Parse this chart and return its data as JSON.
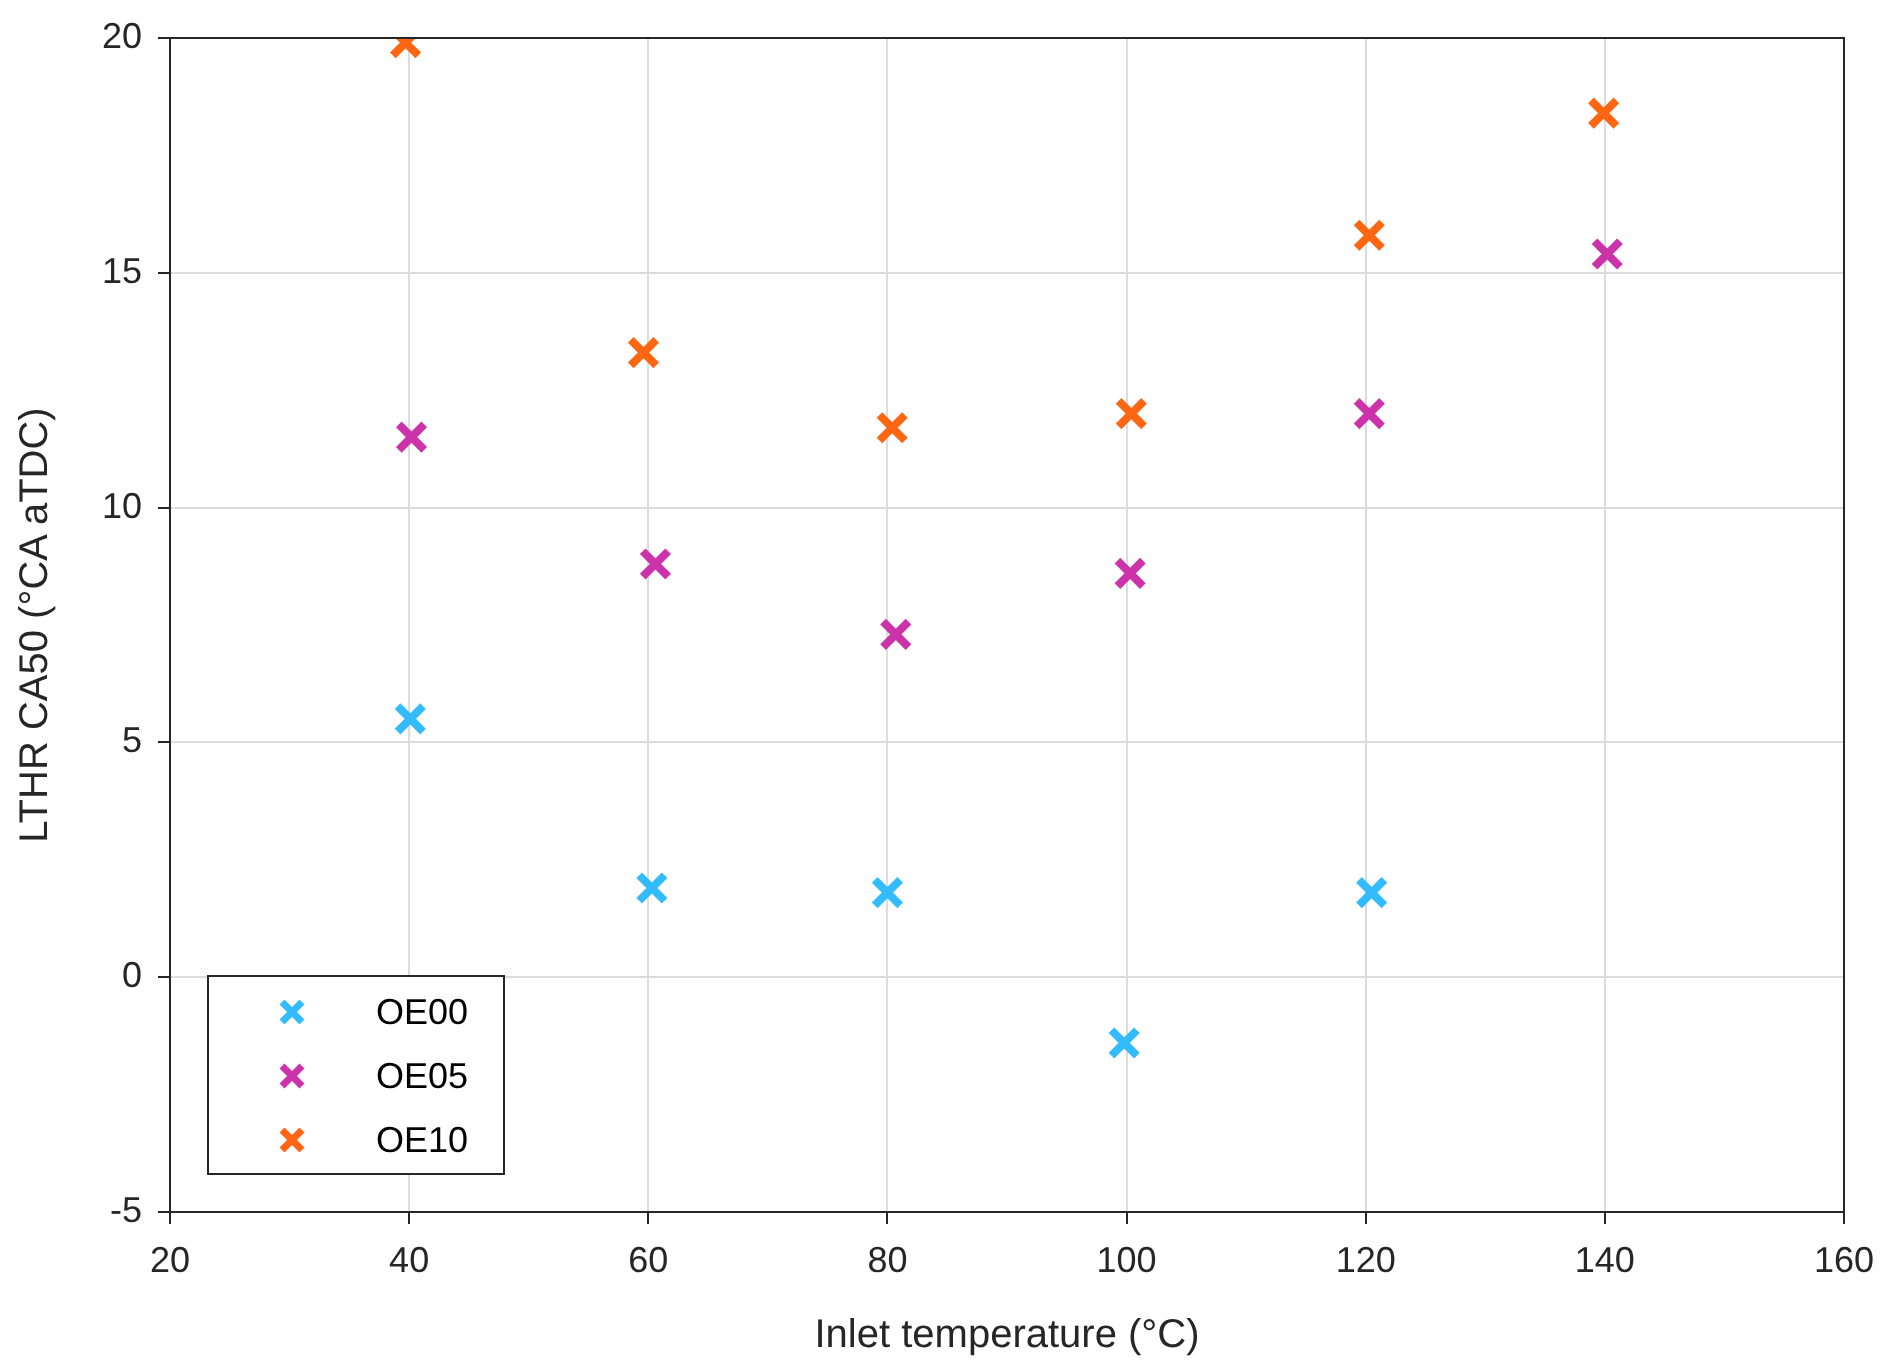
{
  "chart_data": {
    "type": "scatter",
    "xlabel": "Inlet temperature (°C)",
    "ylabel": "LTHR CA50 (°CA aTDC)",
    "xlim": [
      20,
      160
    ],
    "xticks": [
      20,
      40,
      60,
      80,
      100,
      120,
      140,
      160
    ],
    "ylim": [
      -5,
      20
    ],
    "yticks": [
      -5,
      0,
      5,
      10,
      15,
      20
    ],
    "grid": true,
    "legend": "bottom left",
    "marker": "cross",
    "series": [
      {
        "name": "OE00",
        "color": "#33bbff",
        "x": [
          40.1,
          60.3,
          80.0,
          99.8,
          120.5
        ],
        "values": [
          5.5,
          1.9,
          1.8,
          -1.4,
          1.8
        ]
      },
      {
        "name": "OE05",
        "color": "#cc33aa",
        "x": [
          40.2,
          60.6,
          80.7,
          100.3,
          120.3,
          140.2
        ],
        "values": [
          11.5,
          8.8,
          7.3,
          8.6,
          12.0,
          15.4
        ]
      },
      {
        "name": "OE10",
        "color": "#ff6611",
        "x": [
          39.7,
          59.6,
          80.4,
          100.4,
          120.3,
          139.9
        ],
        "values": [
          19.9,
          13.3,
          11.7,
          12.0,
          15.8,
          18.4
        ]
      }
    ]
  }
}
